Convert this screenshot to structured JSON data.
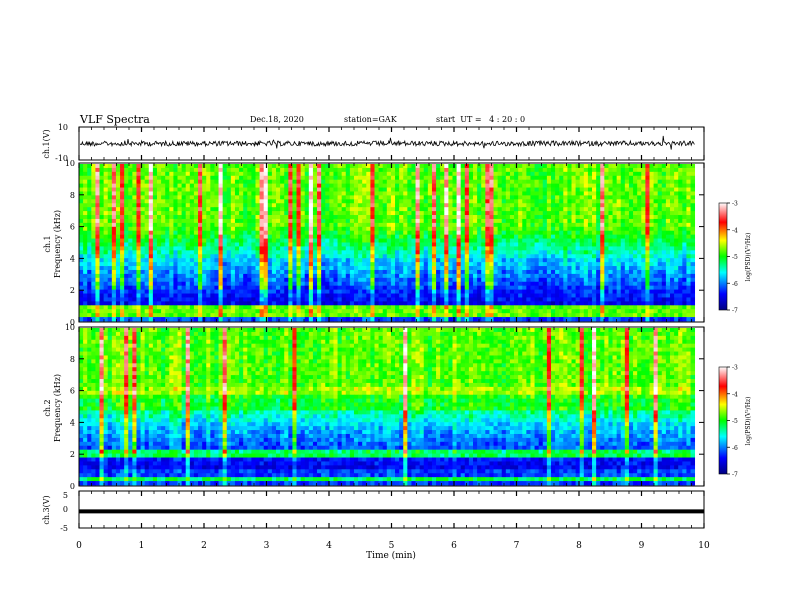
{
  "header": {
    "title": "VLF Spectra",
    "date": "Dec.18, 2020",
    "station": "station=GAK",
    "start": "start  UT =   4 : 20 : 0"
  },
  "chart_data": [
    {
      "type": "line",
      "panel": "ch1-waveform",
      "ylabel": "ch.1(V)",
      "ylim": [
        -10,
        10
      ],
      "yticks": [
        "10",
        "-10"
      ],
      "xlim": [
        0,
        10
      ],
      "baseline": 0,
      "series": [
        {
          "values_note_free": true,
          "color": "#000000"
        }
      ]
    },
    {
      "type": "heatmap",
      "panel": "ch1-spectrogram",
      "ylabel": "ch.1\nFrequency (kHz)",
      "ylabel_line1": "ch.1",
      "ylabel_line2": "Frequency (kHz)",
      "ylim": [
        0,
        10
      ],
      "yticks": [
        "0",
        "2",
        "4",
        "6",
        "8",
        "10"
      ],
      "xlim": [
        0,
        10
      ],
      "colorbar": {
        "label": "log(PSD)(V²/Hz)",
        "range": [
          -7,
          -3
        ],
        "ticks": [
          "-3",
          "-4",
          "-5",
          "-6",
          "-7"
        ]
      }
    },
    {
      "type": "heatmap",
      "panel": "ch2-spectrogram",
      "ylabel_line1": "ch.2",
      "ylabel_line2": "Frequency (kHz)",
      "ylim": [
        0,
        10
      ],
      "yticks": [
        "0",
        "2",
        "4",
        "6",
        "8",
        "10"
      ],
      "xlim": [
        0,
        10
      ],
      "colorbar": {
        "label": "log(PSD)(V²/Hz)",
        "range": [
          -7,
          -3
        ],
        "ticks": [
          "-3",
          "-4",
          "-5",
          "-6",
          "-7"
        ]
      }
    },
    {
      "type": "line",
      "panel": "ch3-waveform",
      "ylabel": "ch.3(V)",
      "ylim": [
        -5,
        5
      ],
      "yticks": [
        "5",
        "0",
        "-5"
      ],
      "xlim": [
        0,
        10
      ],
      "value": -0.5,
      "xlabel": "Time (min)",
      "xticks": [
        "0",
        "1",
        "2",
        "3",
        "4",
        "5",
        "6",
        "7",
        "8",
        "9",
        "10"
      ]
    }
  ]
}
